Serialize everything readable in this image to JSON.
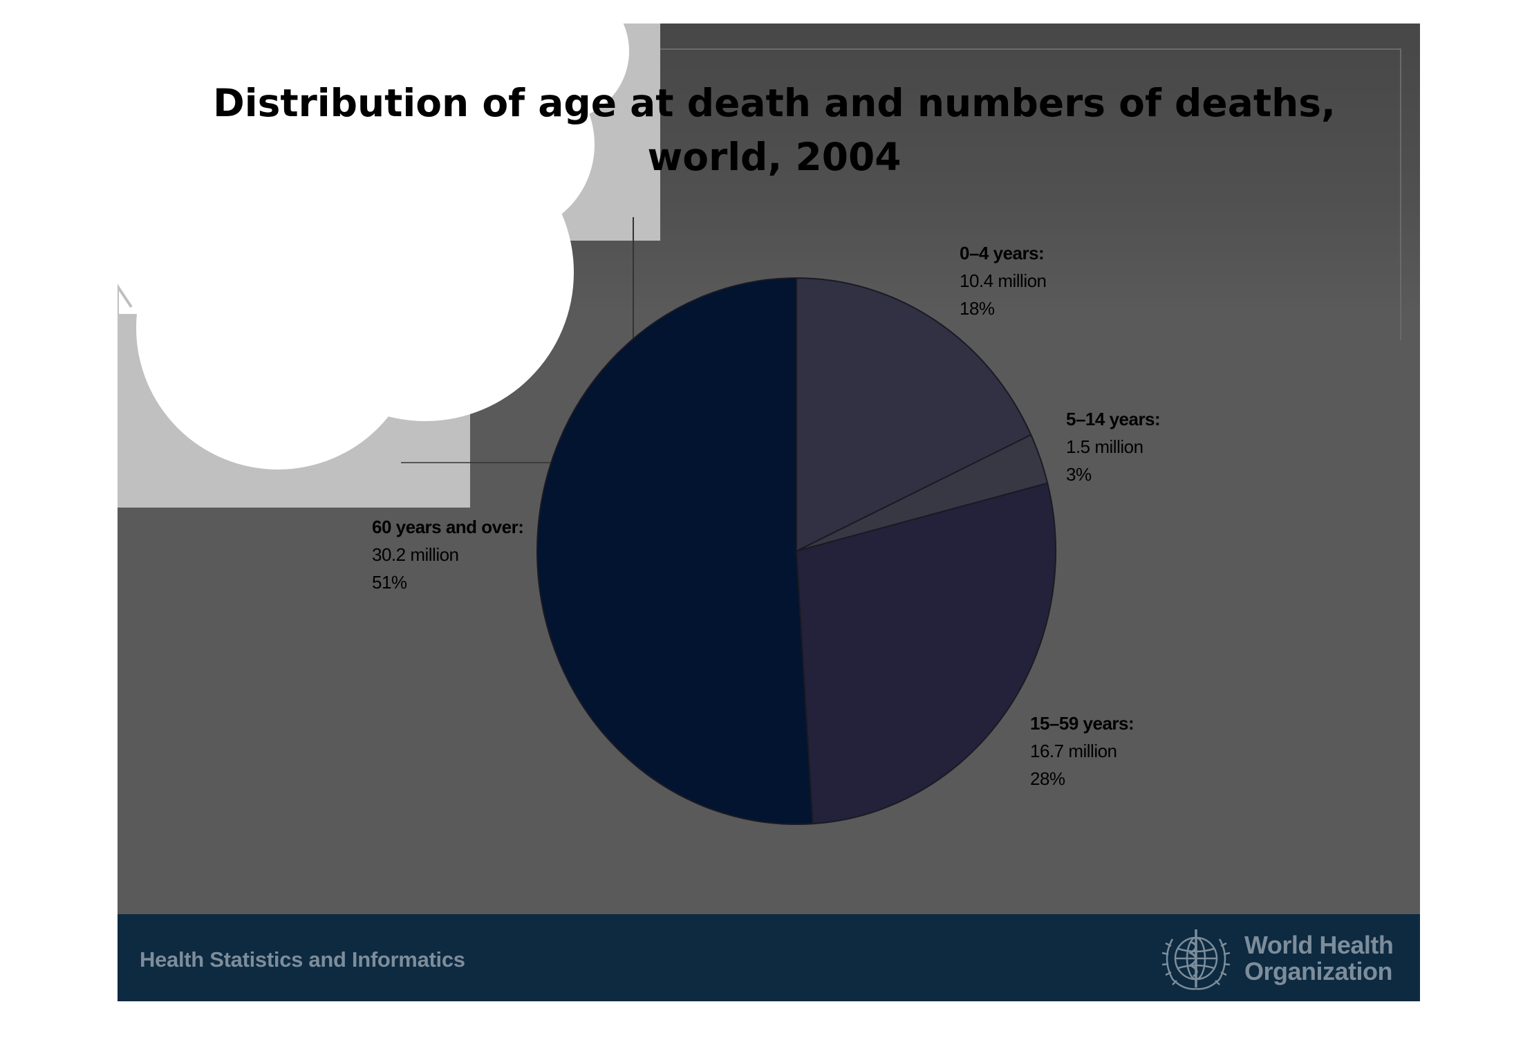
{
  "slide": {
    "title": "Distribution of age at death and numbers of deaths, world, 2004"
  },
  "footer": {
    "left_text": "Health Statistics and Informatics",
    "org_line1": "World Health",
    "org_line2": "Organization",
    "emblem_icon": "who-emblem-icon"
  },
  "colors": {
    "slide_background": "#5a5a5a",
    "footer_background": "#0d2a40",
    "footer_text": "#7d8d9b",
    "slice_0_4": "#323143",
    "slice_5_14": "#383744",
    "slice_15_59": "#23223a",
    "slice_60_plus": "#021430"
  },
  "chart_data": {
    "type": "pie",
    "title": "Distribution of age at death and numbers of deaths, world, 2004",
    "legend": "none",
    "slices": [
      {
        "label": "0–4 years:",
        "value_text": "10.4 million",
        "percent_text": "18%",
        "value": 10.4,
        "percent": 18
      },
      {
        "label": "5–14 years:",
        "value_text": "1.5 million",
        "percent_text": "3%",
        "value": 1.5,
        "percent": 3
      },
      {
        "label": "15–59 years:",
        "value_text": "16.7 million",
        "percent_text": "28%",
        "value": 16.7,
        "percent": 28
      },
      {
        "label": "60 years and over:",
        "value_text": "30.2 million",
        "percent_text": "51%",
        "value": 30.2,
        "percent": 51
      }
    ]
  }
}
